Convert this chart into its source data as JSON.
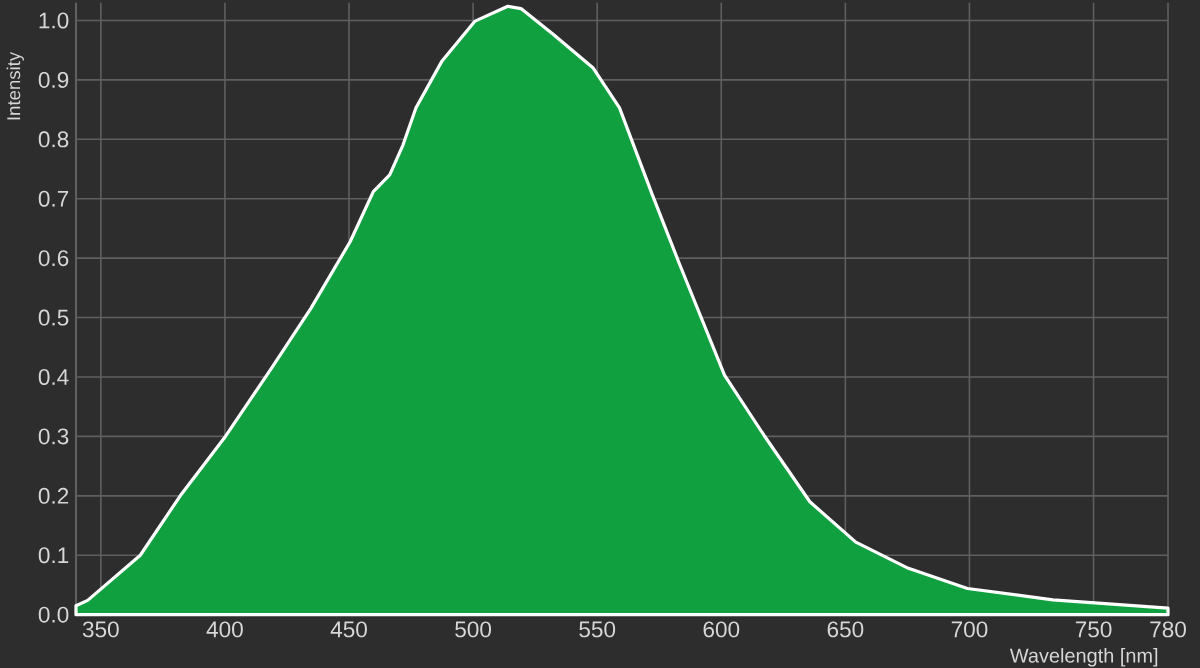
{
  "chart_data": {
    "type": "area",
    "xlabel": "Wavelength [nm]",
    "ylabel": "Intensity",
    "x": [
      340,
      344.7,
      365.9,
      382,
      400.2,
      418.8,
      434.7,
      450.5,
      459.8,
      466.4,
      471.7,
      477,
      487.5,
      500.8,
      514,
      519.3,
      532.5,
      548.4,
      559,
      572.2,
      582.8,
      601.3,
      617.2,
      635.7,
      654.2,
      675.4,
      699.2,
      733.6,
      780
    ],
    "series": [
      {
        "color": "#10a040",
        "values": [
          0.015,
          0.024,
          0.1,
          0.2,
          0.3,
          0.415,
          0.516,
          0.628,
          0.712,
          0.74,
          0.79,
          0.853,
          0.932,
          0.999,
          1.024,
          1.02,
          0.976,
          0.92,
          0.853,
          0.707,
          0.594,
          0.403,
          0.302,
          0.19,
          0.122,
          0.078,
          0.044,
          0.025,
          0.011
        ]
      }
    ],
    "xlim": [
      340,
      780
    ],
    "ylim": [
      0,
      1.03
    ],
    "xticks": [
      350,
      400,
      450,
      500,
      550,
      600,
      650,
      700,
      750,
      780
    ],
    "yticks": [
      {
        "value": 0,
        "label": "0.0"
      },
      0.1,
      0.2,
      0.3,
      0.4,
      0.5,
      0.6,
      0.7,
      0.8,
      0.9,
      {
        "value": 1,
        "label": "1.0"
      }
    ],
    "grid": true
  }
}
